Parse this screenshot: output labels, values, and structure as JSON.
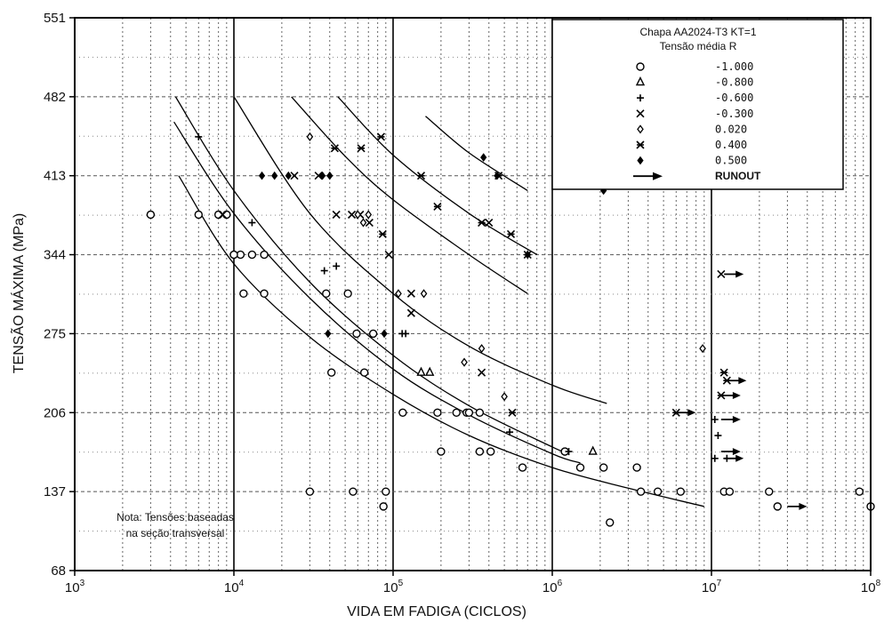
{
  "chart_data": {
    "type": "scatter",
    "xscale": "log",
    "xlabel": "VIDA EM FADIGA (CICLOS)",
    "ylabel": "TENSÃO MÁXIMA (MPa)",
    "xlim": [
      1000,
      100000000
    ],
    "ylim": [
      68,
      551
    ],
    "y_ticks": [
      68,
      137,
      206,
      275,
      344,
      413,
      482,
      551
    ],
    "x_tick_labels": [
      {
        "base": "10",
        "exp": "3"
      },
      {
        "base": "10",
        "exp": "4"
      },
      {
        "base": "10",
        "exp": "5"
      },
      {
        "base": "10",
        "exp": "6"
      },
      {
        "base": "10",
        "exp": "7"
      },
      {
        "base": "10",
        "exp": "8"
      }
    ],
    "grid": true,
    "legend": {
      "title_line1": "Chapa AA2024-T3 KT=1",
      "title_line2": "Tensão média R",
      "placement": "top-right",
      "entries": [
        {
          "marker": "circle",
          "label": "-1.000"
        },
        {
          "marker": "triangle",
          "label": "-0.800"
        },
        {
          "marker": "plus",
          "label": "-0.600"
        },
        {
          "marker": "x",
          "label": "-0.300"
        },
        {
          "marker": "diamond-open",
          "label": "0.020"
        },
        {
          "marker": "asterisk",
          "label": "0.400"
        },
        {
          "marker": "diamond-filled",
          "label": "0.500"
        },
        {
          "marker": "arrow",
          "label": "RUNOUT"
        }
      ]
    },
    "annotation_line1": "Nota: Tensões baseadas",
    "annotation_line2": "na seção transversal",
    "series": [
      {
        "name": "-1.000",
        "marker": "circle",
        "points": [
          [
            3000,
            379
          ],
          [
            6000,
            379
          ],
          [
            8000,
            379
          ],
          [
            9000,
            379
          ],
          [
            10000,
            344
          ],
          [
            11000,
            344
          ],
          [
            11500,
            310
          ],
          [
            13000,
            344
          ],
          [
            15500,
            344
          ],
          [
            15500,
            310
          ],
          [
            10000,
            344
          ],
          [
            38000,
            310
          ],
          [
            52000,
            310
          ],
          [
            41000,
            241
          ],
          [
            66000,
            241
          ],
          [
            59000,
            275
          ],
          [
            75000,
            275
          ],
          [
            115000,
            206
          ],
          [
            190000,
            206
          ],
          [
            250000,
            206
          ],
          [
            290000,
            206
          ],
          [
            300000,
            206
          ],
          [
            350000,
            206
          ],
          [
            200000,
            172
          ],
          [
            350000,
            172
          ],
          [
            410000,
            172
          ],
          [
            650000,
            158
          ],
          [
            1500000,
            158
          ],
          [
            2100000,
            158
          ],
          [
            3400000,
            158
          ],
          [
            1200000,
            172
          ],
          [
            1200000,
            172
          ],
          [
            30000,
            137
          ],
          [
            56000,
            137
          ],
          [
            90000,
            137
          ],
          [
            87000,
            124
          ],
          [
            3600000,
            137
          ],
          [
            4600000,
            137
          ],
          [
            6400000,
            137
          ],
          [
            12000000,
            137
          ],
          [
            13000000,
            137
          ],
          [
            23000000,
            137
          ],
          [
            26000000,
            124
          ],
          [
            85000000,
            137
          ],
          [
            100000000,
            124
          ],
          [
            2300000,
            110
          ]
        ]
      },
      {
        "name": "-0.800",
        "marker": "triangle",
        "points": [
          [
            150000,
            241
          ],
          [
            170000,
            241
          ],
          [
            1800000,
            172
          ]
        ]
      },
      {
        "name": "-0.600",
        "marker": "plus",
        "points": [
          [
            6000,
            447
          ],
          [
            13000,
            372
          ],
          [
            37000,
            330
          ],
          [
            44000,
            334
          ],
          [
            114000,
            275
          ],
          [
            120000,
            275
          ],
          [
            540000,
            189
          ],
          [
            1270000,
            172
          ],
          [
            10500000,
            200
          ],
          [
            11000000,
            186
          ],
          [
            10500000,
            166
          ],
          [
            12500000,
            166
          ]
        ]
      },
      {
        "name": "-0.300",
        "marker": "x",
        "points": [
          [
            8500,
            379
          ],
          [
            24000,
            413
          ],
          [
            34000,
            413
          ],
          [
            44000,
            379
          ],
          [
            55000,
            379
          ],
          [
            62000,
            379
          ],
          [
            71000,
            372
          ],
          [
            94000,
            344
          ],
          [
            130000,
            310
          ],
          [
            130000,
            293
          ],
          [
            360000,
            241
          ],
          [
            400000,
            372
          ],
          [
            11500000,
            327
          ]
        ]
      },
      {
        "name": "0.020",
        "marker": "diamond-open",
        "points": [
          [
            30000,
            447
          ],
          [
            60000,
            379
          ],
          [
            65000,
            372
          ],
          [
            70000,
            379
          ],
          [
            108000,
            310
          ],
          [
            156000,
            310
          ],
          [
            280000,
            250
          ],
          [
            360000,
            262
          ],
          [
            500000,
            220
          ],
          [
            8800000,
            262
          ]
        ]
      },
      {
        "name": "0.400",
        "marker": "asterisk",
        "points": [
          [
            43000,
            437
          ],
          [
            63000,
            437
          ],
          [
            84000,
            447
          ],
          [
            86000,
            362
          ],
          [
            150000,
            413
          ],
          [
            190000,
            386
          ],
          [
            360000,
            372
          ],
          [
            460000,
            413
          ],
          [
            550000,
            362
          ],
          [
            700000,
            344
          ],
          [
            560000,
            206
          ],
          [
            6000000,
            206
          ],
          [
            12000000,
            241
          ],
          [
            12500000,
            234
          ],
          [
            11500000,
            221
          ]
        ]
      },
      {
        "name": "0.500",
        "marker": "diamond-filled",
        "points": [
          [
            15000,
            413
          ],
          [
            18000,
            413
          ],
          [
            22000,
            413
          ],
          [
            36000,
            413
          ],
          [
            40000,
            413
          ],
          [
            39000,
            275
          ],
          [
            88000,
            275
          ],
          [
            370000,
            429
          ],
          [
            450000,
            413
          ],
          [
            2100000,
            400
          ],
          [
            700000,
            344
          ]
        ]
      },
      {
        "name": "RUNOUT",
        "marker": "arrow",
        "points": [
          [
            12000000,
            327
          ],
          [
            12500000,
            234
          ],
          [
            11500000,
            221
          ],
          [
            11500000,
            200
          ],
          [
            11500000,
            172
          ],
          [
            12000000,
            166
          ],
          [
            6000000,
            206
          ],
          [
            30000000,
            124
          ]
        ]
      }
    ],
    "curves": [
      {
        "points": [
          [
            4500,
            413
          ],
          [
            10000,
            336
          ],
          [
            30000,
            272
          ],
          [
            100000,
            222
          ],
          [
            300000,
            186
          ],
          [
            1000000,
            158
          ],
          [
            3000000,
            140
          ],
          [
            9000000,
            124
          ]
        ]
      },
      {
        "points": [
          [
            4200,
            460
          ],
          [
            10000,
            380
          ],
          [
            30000,
            306
          ],
          [
            100000,
            244
          ],
          [
            300000,
            204
          ],
          [
            1000000,
            170
          ],
          [
            1500000,
            162
          ]
        ]
      },
      {
        "points": [
          [
            4300,
            482
          ],
          [
            10000,
            400
          ],
          [
            30000,
            320
          ],
          [
            100000,
            256
          ],
          [
            300000,
            212
          ],
          [
            1000000,
            176
          ],
          [
            1200000,
            172
          ]
        ]
      },
      {
        "points": [
          [
            10000,
            482
          ],
          [
            30000,
            380
          ],
          [
            100000,
            310
          ],
          [
            300000,
            264
          ],
          [
            1000000,
            230
          ],
          [
            2200000,
            214
          ]
        ]
      },
      {
        "points": [
          [
            23000,
            482
          ],
          [
            50000,
            430
          ],
          [
            100000,
            392
          ],
          [
            300000,
            344
          ],
          [
            700000,
            310
          ]
        ]
      },
      {
        "points": [
          [
            45000,
            482
          ],
          [
            100000,
            431
          ],
          [
            300000,
            380
          ],
          [
            800000,
            344
          ]
        ]
      },
      {
        "points": [
          [
            160000,
            465
          ],
          [
            300000,
            433
          ],
          [
            700000,
            400
          ]
        ]
      }
    ]
  }
}
